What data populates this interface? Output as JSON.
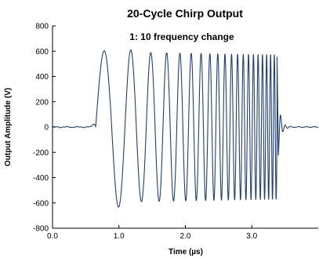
{
  "chart_data": {
    "type": "line",
    "title": "20-Cycle Chirp Output",
    "annotation": "1: 10 frequency change",
    "xlabel": "Time (µs)",
    "ylabel": "Output Amplitude (V)",
    "xlim": [
      0.0,
      4.0
    ],
    "ylim": [
      -800,
      800
    ],
    "x_ticks": [
      0.0,
      1.0,
      2.0,
      3.0
    ],
    "x_tick_labels": [
      "0.0",
      "1.0",
      "2.0",
      "3.0"
    ],
    "y_ticks": [
      -800,
      -600,
      -400,
      -200,
      0,
      200,
      400,
      600,
      800
    ],
    "y_tick_labels": [
      "-800",
      "-600",
      "-400",
      "-200",
      "0",
      "200",
      "400",
      "600",
      "800"
    ],
    "grid": false,
    "line_color": "#1f3f78",
    "series": [
      {
        "signal": "chirp",
        "cycles": 20,
        "start_time": 0.65,
        "end_time": 3.38,
        "frequency_ratio": 10,
        "peaks": [
          {
            "x": 0.86,
            "y": 620
          },
          {
            "x": 1.09,
            "y": -680
          },
          {
            "x": 1.24,
            "y": 635
          },
          {
            "x": 1.31,
            "y": -655
          },
          {
            "x": 3.36,
            "y": 580
          }
        ],
        "baseline": 0
      }
    ]
  }
}
